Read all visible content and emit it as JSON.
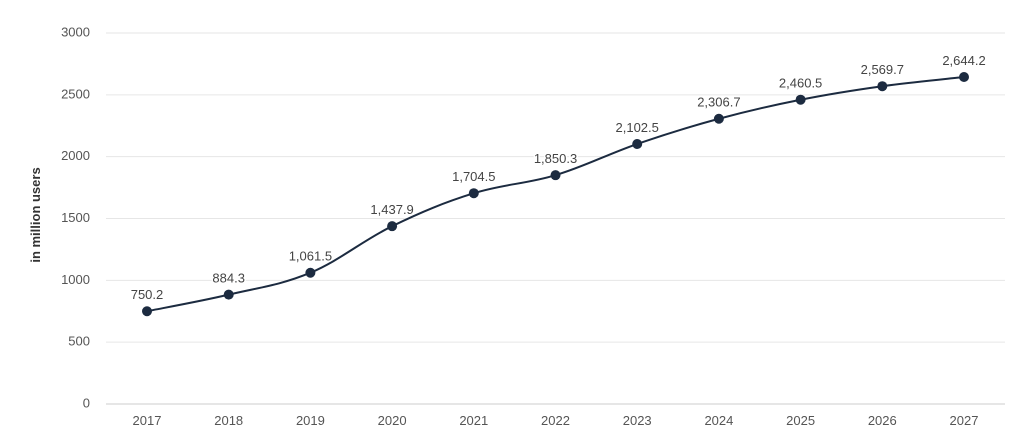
{
  "chart_data": {
    "type": "line",
    "title": "",
    "xlabel": "",
    "ylabel": "in million users",
    "ylim": [
      0,
      3000
    ],
    "yticks": [
      0,
      500,
      1000,
      1500,
      2000,
      2500,
      3000
    ],
    "grid": true,
    "legend": "none",
    "categories": [
      "2017",
      "2018",
      "2019",
      "2020",
      "2021",
      "2022",
      "2023",
      "2024",
      "2025",
      "2026",
      "2027"
    ],
    "series": [
      {
        "values": [
          750.2,
          884.3,
          1061.5,
          1437.9,
          1704.5,
          1850.3,
          2102.5,
          2306.7,
          2460.5,
          2569.7,
          2644.2
        ],
        "labels": [
          "750.2",
          "884.3",
          "1,061.5",
          "1,437.9",
          "1,704.5",
          "1,850.3",
          "2,102.5",
          "2,306.7",
          "2,460.5",
          "2,569.7",
          "2,644.2"
        ],
        "color": "#1c2b40"
      }
    ]
  }
}
